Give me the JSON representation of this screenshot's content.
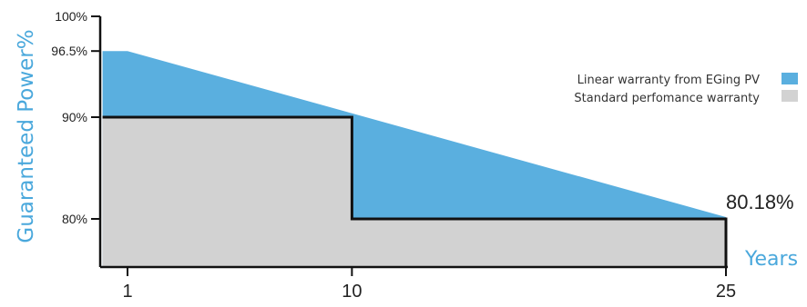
{
  "chart_data": {
    "type": "area",
    "xlabel": "Years",
    "ylabel": "Guaranteed Power%",
    "xlim": [
      0,
      25
    ],
    "ylim": [
      76,
      100
    ],
    "x_ticks": [
      {
        "value": 1,
        "label": "1"
      },
      {
        "value": 10,
        "label": "10"
      },
      {
        "value": 25,
        "label": "25"
      }
    ],
    "y_ticks": [
      {
        "value": 100,
        "label": "100%"
      },
      {
        "value": 96.5,
        "label": "96.5%"
      },
      {
        "value": 90,
        "label": "90%"
      },
      {
        "value": 80,
        "label": "80%"
      }
    ],
    "series": [
      {
        "name": "Linear warranty from EGing PV",
        "color": "#5aafdf",
        "points": [
          [
            0,
            96.5
          ],
          [
            1,
            96.5
          ],
          [
            25,
            80.18
          ]
        ]
      },
      {
        "name": "Standard perfomance warranty",
        "color": "#d2d2d2",
        "points": [
          [
            0,
            90
          ],
          [
            10,
            90
          ],
          [
            10,
            80
          ],
          [
            25,
            80
          ]
        ]
      }
    ],
    "annotations": [
      {
        "text": "80.18%",
        "x": 25,
        "y": 80.18
      }
    ],
    "legend_position": "top-right",
    "grid": false
  }
}
